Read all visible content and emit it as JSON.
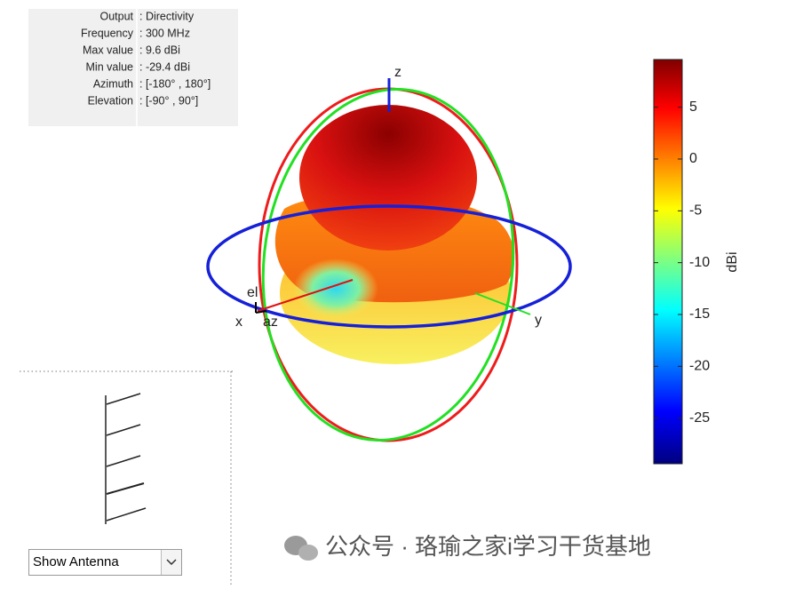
{
  "info": {
    "rows": [
      {
        "label": "Output",
        "value": ": Directivity"
      },
      {
        "label": "Frequency",
        "value": ": 300 MHz"
      },
      {
        "label": "Max value",
        "value": ": 9.6 dBi"
      },
      {
        "label": "Min value",
        "value": ": -29.4 dBi"
      },
      {
        "label": "Azimuth",
        "value": ": [-180° , 180°]"
      },
      {
        "label": "Elevation",
        "value": ": [-90° , 90°]"
      }
    ]
  },
  "axes": {
    "x": "x",
    "y": "y",
    "z": "z",
    "el": "el",
    "az": "az"
  },
  "colorbar": {
    "label": "dBi",
    "lim": [
      -29.4,
      9.6
    ],
    "ticks": [
      5,
      0,
      -5,
      -10,
      -15,
      -20,
      -25
    ]
  },
  "dropdown": "Show Antenna",
  "watermark": "公众号 · 珞瑜之家i学习干货基地"
}
